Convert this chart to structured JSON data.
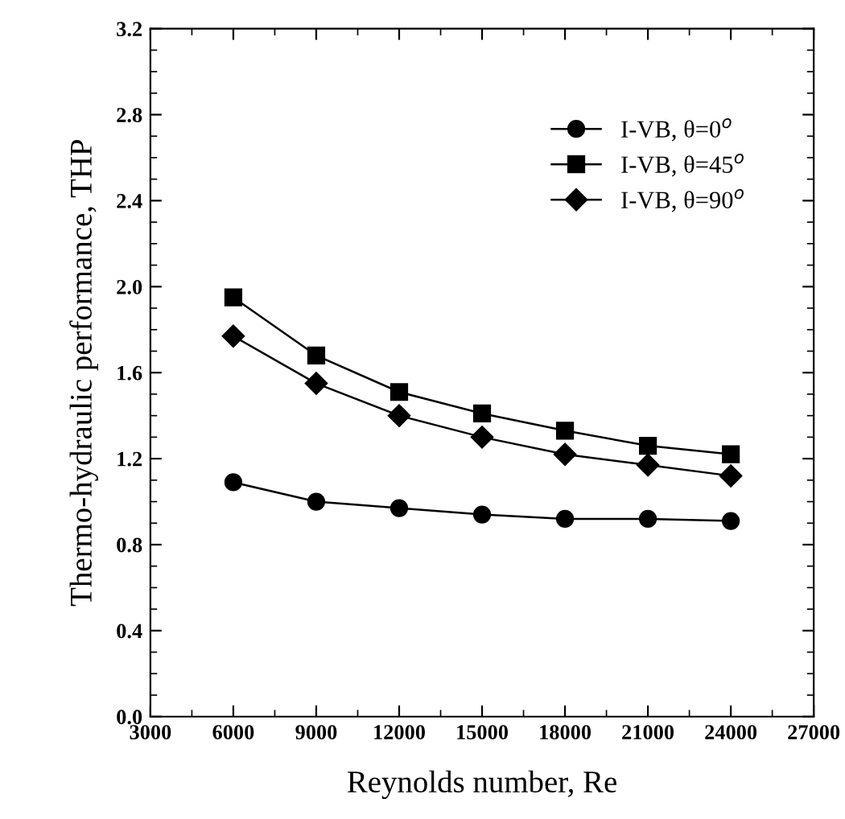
{
  "chart_data": {
    "type": "line",
    "xlabel": "Reynolds number, Re",
    "ylabel": "Thermo-hydraulic performance, THP",
    "x": [
      6000,
      9000,
      12000,
      15000,
      18000,
      21000,
      24000
    ],
    "series": [
      {
        "name": "I-VB, θ=0$^{o}$",
        "color": "#000000",
        "marker": "circle",
        "values": [
          1.09,
          1.0,
          0.97,
          0.94,
          0.92,
          0.92,
          0.91
        ]
      },
      {
        "name": "I-VB, θ=45$^{o}$",
        "color": "#000000",
        "marker": "square",
        "values": [
          1.95,
          1.68,
          1.51,
          1.41,
          1.33,
          1.26,
          1.22
        ]
      },
      {
        "name": "I-VB, θ=90$^{o}$",
        "color": "#000000",
        "marker": "diamond",
        "values": [
          1.77,
          1.55,
          1.4,
          1.3,
          1.22,
          1.17,
          1.12
        ]
      }
    ],
    "xlim": [
      3000,
      27000
    ],
    "xticks": [
      3000,
      6000,
      9000,
      12000,
      15000,
      18000,
      21000,
      24000,
      27000
    ],
    "ylim": [
      0.0,
      3.2
    ],
    "yticks": [
      {
        "value": 0,
        "label": "0.0"
      },
      0.4,
      0.8,
      1.2,
      1.6,
      {
        "value": 2,
        "label": "2.0"
      },
      2.4,
      2.8,
      3.2
    ],
    "grid": false,
    "legend": "top right",
    "line_style": "solid"
  }
}
